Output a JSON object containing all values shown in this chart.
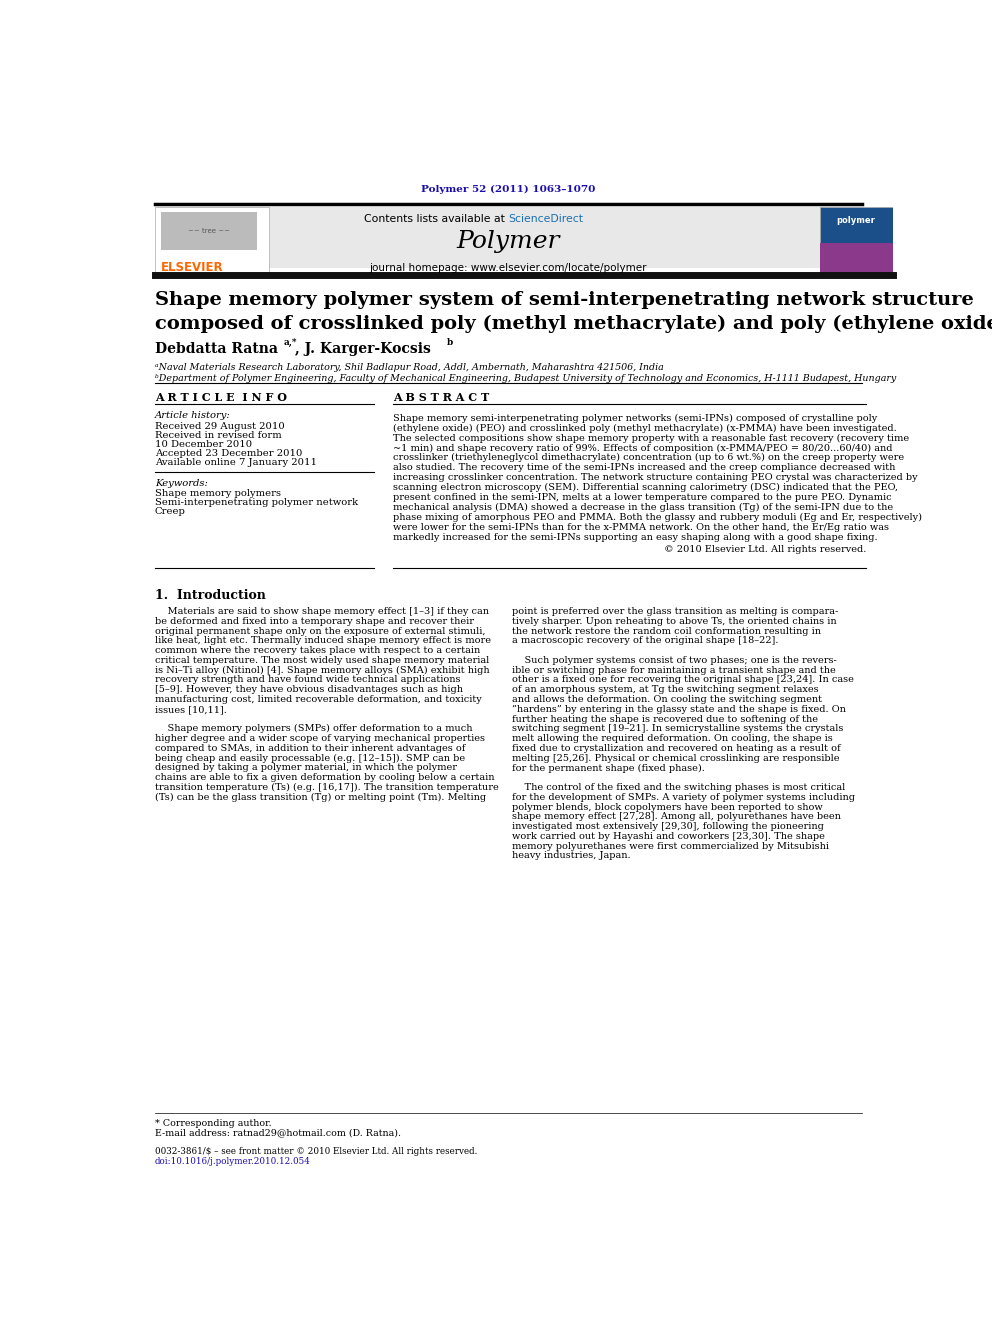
{
  "page_width": 9.92,
  "page_height": 13.23,
  "background_color": "#ffffff",
  "journal_ref": "Polymer 52 (2011) 1063–1070",
  "journal_ref_color": "#1a0dab",
  "header_bg": "#e8e8e8",
  "header_text": "Contents lists available at ScienceDirect",
  "sciencedirect_color": "#1a6faf",
  "journal_name": "Polymer",
  "journal_homepage": "journal homepage: www.elsevier.com/locate/polymer",
  "elsevier_color": "#ff6600",
  "elsevier_text": "ELSEVIER",
  "article_title_line1": "Shape memory polymer system of semi-interpenetrating network structure",
  "article_title_line2": "composed of crosslinked poly (methyl methacrylate) and poly (ethylene oxide)",
  "author1": "Debdatta Ratna",
  "author1_sup": "a,*",
  "author2": ", J. Karger-Kocsis",
  "author2_sup": "b",
  "affil1": "ᵃNaval Materials Research Laboratory, Shil Badlapur Road, Addl, Ambernath, Maharashtra 421506, India",
  "affil2": "ᵇDepartment of Polymer Engineering, Faculty of Mechanical Engineering, Budapest University of Technology and Economics, H-1111 Budapest, Hungary",
  "article_info_title": "A R T I C L E  I N F O",
  "abstract_title": "A B S T R A C T",
  "article_history_label": "Article history:",
  "received": "Received 29 August 2010",
  "received_revised1": "Received in revised form",
  "received_revised2": "10 December 2010",
  "accepted": "Accepted 23 December 2010",
  "available": "Available online 7 January 2011",
  "keywords_label": "Keywords:",
  "keyword1": "Shape memory polymers",
  "keyword2": "Semi-interpenetrating polymer network",
  "keyword3": "Creep",
  "abstract_lines": [
    "Shape memory semi-interpenetrating polymer networks (semi-IPNs) composed of crystalline poly",
    "(ethylene oxide) (PEO) and crosslinked poly (methyl methacrylate) (x-PMMA) have been investigated.",
    "The selected compositions show shape memory property with a reasonable fast recovery (recovery time",
    "~1 min) and shape recovery ratio of 99%. Effects of composition (x-PMMA/PEO = 80/20...60/40) and",
    "crosslinker (triethyleneglycol dimethacrylate) concentration (up to 6 wt.%) on the creep property were",
    "also studied. The recovery time of the semi-IPNs increased and the creep compliance decreased with",
    "increasing crosslinker concentration. The network structure containing PEO crystal was characterized by",
    "scanning electron microscopy (SEM). Differential scanning calorimetry (DSC) indicated that the PEO,",
    "present confined in the semi-IPN, melts at a lower temperature compared to the pure PEO. Dynamic",
    "mechanical analysis (DMA) showed a decrease in the glass transition (Tg) of the semi-IPN due to the",
    "phase mixing of amorphous PEO and PMMA. Both the glassy and rubbery moduli (Eg and Er, respectively)",
    "were lower for the semi-IPNs than for the x-PMMA network. On the other hand, the Er/Eg ratio was",
    "markedly increased for the semi-IPNs supporting an easy shaping along with a good shape fixing."
  ],
  "copyright": "© 2010 Elsevier Ltd. All rights reserved.",
  "intro_title": "1.  Introduction",
  "intro_col1_lines": [
    "    Materials are said to show shape memory effect [1–3] if they can",
    "be deformed and fixed into a temporary shape and recover their",
    "original permanent shape only on the exposure of external stimuli,",
    "like heat, light etc. Thermally induced shape memory effect is more",
    "common where the recovery takes place with respect to a certain",
    "critical temperature. The most widely used shape memory material",
    "is Ni–Ti alloy (Nitinol) [4]. Shape memory alloys (SMA) exhibit high",
    "recovery strength and have found wide technical applications",
    "[5–9]. However, they have obvious disadvantages such as high",
    "manufacturing cost, limited recoverable deformation, and toxicity",
    "issues [10,11].",
    "",
    "    Shape memory polymers (SMPs) offer deformation to a much",
    "higher degree and a wider scope of varying mechanical properties",
    "compared to SMAs, in addition to their inherent advantages of",
    "being cheap and easily processable (e.g. [12–15]). SMP can be",
    "designed by taking a polymer material, in which the polymer",
    "chains are able to fix a given deformation by cooling below a certain",
    "transition temperature (Ts) (e.g. [16,17]). The transition temperature",
    "(Ts) can be the glass transition (Tg) or melting point (Tm). Melting"
  ],
  "intro_col2_lines": [
    "point is preferred over the glass transition as melting is compara-",
    "tively sharper. Upon reheating to above Ts, the oriented chains in",
    "the network restore the random coil conformation resulting in",
    "a macroscopic recovery of the original shape [18–22].",
    "",
    "    Such polymer systems consist of two phases; one is the revers-",
    "ible or switching phase for maintaining a transient shape and the",
    "other is a fixed one for recovering the original shape [23,24]. In case",
    "of an amorphous system, at Tg the switching segment relaxes",
    "and allows the deformation. On cooling the switching segment",
    "”hardens” by entering in the glassy state and the shape is fixed. On",
    "further heating the shape is recovered due to softening of the",
    "switching segment [19–21]. In semicrystalline systems the crystals",
    "melt allowing the required deformation. On cooling, the shape is",
    "fixed due to crystallization and recovered on heating as a result of",
    "melting [25,26]. Physical or chemical crosslinking are responsible",
    "for the permanent shape (fixed phase).",
    "",
    "    The control of the fixed and the switching phases is most critical",
    "for the development of SMPs. A variety of polymer systems including",
    "polymer blends, block copolymers have been reported to show",
    "shape memory effect [27,28]. Among all, polyurethanes have been",
    "investigated most extensively [29,30], following the pioneering",
    "work carried out by Hayashi and coworkers [23,30]. The shape",
    "memory polyurethanes were first commercialized by Mitsubishi",
    "heavy industries, Japan."
  ],
  "footnote": "* Corresponding author.",
  "email_line": "E-mail address: ratnad29@hotmail.com (D. Ratna).",
  "issn": "0032-3861/$ – see front matter © 2010 Elsevier Ltd. All rights reserved.",
  "doi": "doi:10.1016/j.polymer.2010.12.054"
}
